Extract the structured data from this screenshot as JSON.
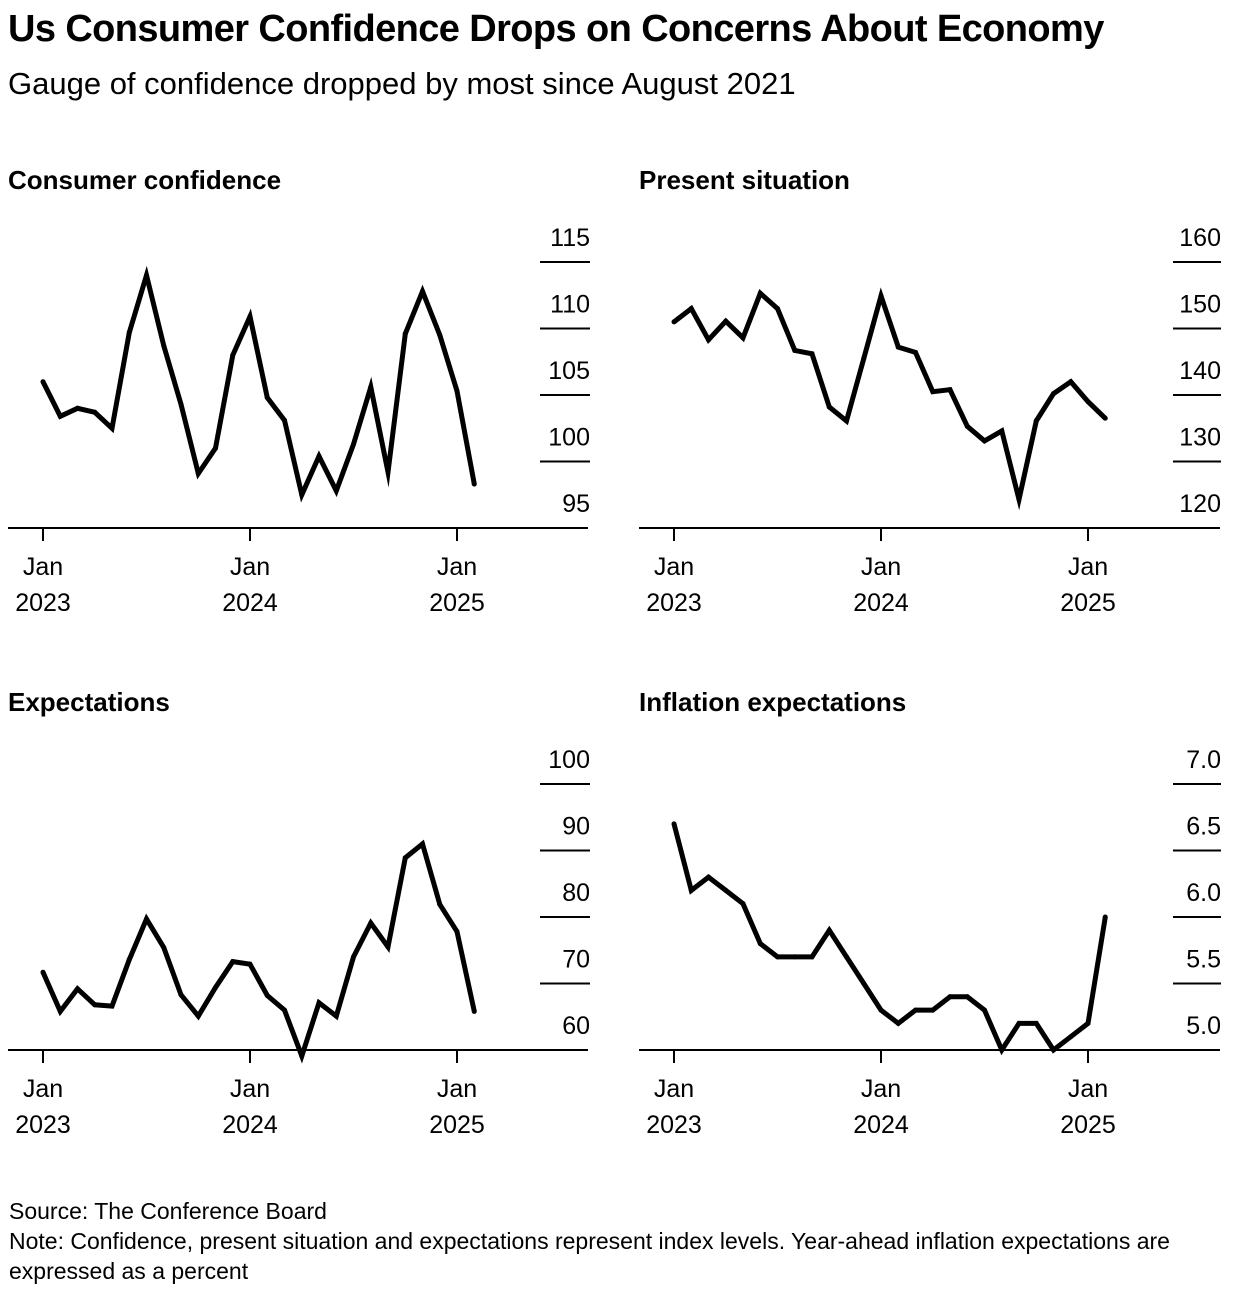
{
  "title": "Us Consumer Confidence Drops on Concerns About Economy",
  "subtitle": "Gauge of confidence dropped by most since August 2021",
  "footer": {
    "source": "Source: The Conference Board",
    "note": "Note: Confidence, present situation and expectations represent index levels. Year-ahead inflation expectations are expressed as a percent"
  },
  "colors": {
    "line": "#000000",
    "axis": "#000000",
    "background": "#ffffff"
  },
  "chart_data": [
    {
      "id": "consumer-confidence",
      "type": "line",
      "title": "Consumer confidence",
      "xlabel": "",
      "ylabel": "",
      "ylim": [
        95,
        115
      ],
      "yticks": [
        "115",
        "110",
        "105",
        "100",
        "95"
      ],
      "ytick_values": [
        115,
        110,
        105,
        100,
        95
      ],
      "xticks": [
        {
          "line1": "Jan",
          "line2": "2023",
          "month_index": 0
        },
        {
          "line1": "Jan",
          "line2": "2024",
          "month_index": 12
        },
        {
          "line1": "Jan",
          "line2": "2025",
          "month_index": 24
        }
      ],
      "x": [
        "2023-01",
        "2023-02",
        "2023-03",
        "2023-04",
        "2023-05",
        "2023-06",
        "2023-07",
        "2023-08",
        "2023-09",
        "2023-10",
        "2023-11",
        "2023-12",
        "2024-01",
        "2024-02",
        "2024-03",
        "2024-04",
        "2024-05",
        "2024-06",
        "2024-07",
        "2024-08",
        "2024-09",
        "2024-10",
        "2024-11",
        "2024-12",
        "2025-01",
        "2025-02"
      ],
      "values": [
        106.0,
        103.4,
        104.0,
        103.7,
        102.5,
        109.7,
        114.0,
        108.7,
        104.3,
        99.1,
        101.0,
        108.0,
        110.9,
        104.8,
        103.1,
        97.5,
        100.4,
        97.8,
        101.3,
        105.6,
        99.2,
        109.6,
        112.8,
        109.5,
        105.3,
        98.3
      ]
    },
    {
      "id": "present-situation",
      "type": "line",
      "title": "Present situation",
      "xlabel": "",
      "ylabel": "",
      "ylim": [
        120,
        160
      ],
      "yticks": [
        "160",
        "150",
        "140",
        "130",
        "120"
      ],
      "ytick_values": [
        160,
        150,
        140,
        130,
        120
      ],
      "xticks": [
        {
          "line1": "Jan",
          "line2": "2023",
          "month_index": 0
        },
        {
          "line1": "Jan",
          "line2": "2024",
          "month_index": 12
        },
        {
          "line1": "Jan",
          "line2": "2025",
          "month_index": 24
        }
      ],
      "x": [
        "2023-01",
        "2023-02",
        "2023-03",
        "2023-04",
        "2023-05",
        "2023-06",
        "2023-07",
        "2023-08",
        "2023-09",
        "2023-10",
        "2023-11",
        "2023-12",
        "2024-01",
        "2024-02",
        "2024-03",
        "2024-04",
        "2024-05",
        "2024-06",
        "2024-07",
        "2024-08",
        "2024-09",
        "2024-10",
        "2024-11",
        "2024-12",
        "2025-01",
        "2025-02"
      ],
      "values": [
        151.0,
        153.0,
        148.3,
        151.1,
        148.6,
        155.3,
        153.0,
        146.7,
        146.2,
        138.2,
        136.1,
        145.5,
        154.9,
        147.2,
        146.4,
        140.5,
        140.8,
        135.3,
        133.1,
        134.6,
        124.3,
        136.1,
        140.2,
        142.0,
        139.0,
        136.5
      ]
    },
    {
      "id": "expectations",
      "type": "line",
      "title": "Expectations",
      "xlabel": "",
      "ylabel": "",
      "ylim": [
        60,
        100
      ],
      "yticks": [
        "100",
        "90",
        "80",
        "70",
        "60"
      ],
      "ytick_values": [
        100,
        90,
        80,
        70,
        60
      ],
      "xticks": [
        {
          "line1": "Jan",
          "line2": "2023",
          "month_index": 0
        },
        {
          "line1": "Jan",
          "line2": "2024",
          "month_index": 12
        },
        {
          "line1": "Jan",
          "line2": "2025",
          "month_index": 24
        }
      ],
      "x": [
        "2023-01",
        "2023-02",
        "2023-03",
        "2023-04",
        "2023-05",
        "2023-06",
        "2023-07",
        "2023-08",
        "2023-09",
        "2023-10",
        "2023-11",
        "2023-12",
        "2024-01",
        "2024-02",
        "2024-03",
        "2024-04",
        "2024-05",
        "2024-06",
        "2024-07",
        "2024-08",
        "2024-09",
        "2024-10",
        "2024-11",
        "2024-12",
        "2025-01",
        "2025-02"
      ],
      "values": [
        71.7,
        65.8,
        69.2,
        66.8,
        66.6,
        73.6,
        79.7,
        75.4,
        68.3,
        65.1,
        69.4,
        73.3,
        72.9,
        68.2,
        66.0,
        59.1,
        67.1,
        65.1,
        74.0,
        79.1,
        75.5,
        88.9,
        91.0,
        81.9,
        77.8,
        65.8
      ]
    },
    {
      "id": "inflation-expectations",
      "type": "line",
      "title": "Inflation expectations",
      "xlabel": "",
      "ylabel": "",
      "ylim": [
        5.0,
        7.0
      ],
      "yticks": [
        "7.0",
        "6.5",
        "6.0",
        "5.5",
        "5.0"
      ],
      "ytick_values": [
        7.0,
        6.5,
        6.0,
        5.5,
        5.0
      ],
      "xticks": [
        {
          "line1": "Jan",
          "line2": "2023",
          "month_index": 0
        },
        {
          "line1": "Jan",
          "line2": "2024",
          "month_index": 12
        },
        {
          "line1": "Jan",
          "line2": "2025",
          "month_index": 24
        }
      ],
      "x": [
        "2023-01",
        "2023-02",
        "2023-03",
        "2023-04",
        "2023-05",
        "2023-06",
        "2023-07",
        "2023-08",
        "2023-09",
        "2023-10",
        "2023-11",
        "2023-12",
        "2024-01",
        "2024-02",
        "2024-03",
        "2024-04",
        "2024-05",
        "2024-06",
        "2024-07",
        "2024-08",
        "2024-09",
        "2024-10",
        "2024-11",
        "2024-12",
        "2025-01",
        "2025-02"
      ],
      "values": [
        6.7,
        6.2,
        6.3,
        6.2,
        6.1,
        5.8,
        5.7,
        5.7,
        5.7,
        5.9,
        5.7,
        5.5,
        5.3,
        5.2,
        5.3,
        5.3,
        5.4,
        5.4,
        5.3,
        5.0,
        5.2,
        5.2,
        5.0,
        5.1,
        5.2,
        6.0
      ]
    }
  ]
}
